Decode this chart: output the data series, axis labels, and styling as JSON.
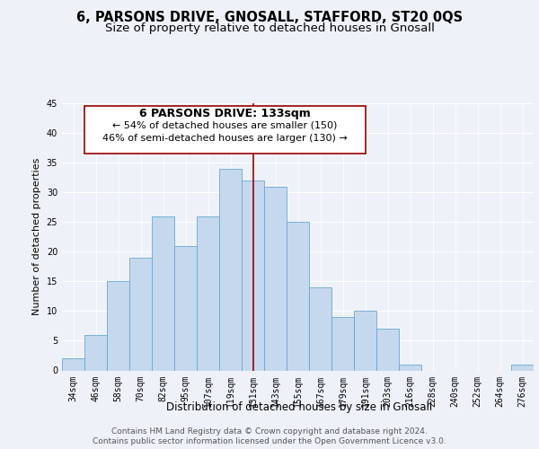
{
  "title": "6, PARSONS DRIVE, GNOSALL, STAFFORD, ST20 0QS",
  "subtitle": "Size of property relative to detached houses in Gnosall",
  "xlabel": "Distribution of detached houses by size in Gnosall",
  "ylabel": "Number of detached properties",
  "bar_labels": [
    "34sqm",
    "46sqm",
    "58sqm",
    "70sqm",
    "82sqm",
    "95sqm",
    "107sqm",
    "119sqm",
    "131sqm",
    "143sqm",
    "155sqm",
    "167sqm",
    "179sqm",
    "191sqm",
    "203sqm",
    "216sqm",
    "228sqm",
    "240sqm",
    "252sqm",
    "264sqm",
    "276sqm"
  ],
  "bar_values": [
    2,
    6,
    15,
    19,
    26,
    21,
    26,
    34,
    32,
    31,
    25,
    14,
    9,
    10,
    7,
    1,
    0,
    0,
    0,
    0,
    1
  ],
  "bar_color": "#c5d8ed",
  "bar_edge_color": "#6aa8d0",
  "ref_line_x": 8,
  "ref_line_color": "#990000",
  "ylim": [
    0,
    45
  ],
  "yticks": [
    0,
    5,
    10,
    15,
    20,
    25,
    30,
    35,
    40,
    45
  ],
  "annotation_title": "6 PARSONS DRIVE: 133sqm",
  "annotation_line1": "← 54% of detached houses are smaller (150)",
  "annotation_line2": "46% of semi-detached houses are larger (130) →",
  "annotation_box_color": "#ffffff",
  "annotation_box_edge": "#990000",
  "footer_line1": "Contains HM Land Registry data © Crown copyright and database right 2024.",
  "footer_line2": "Contains public sector information licensed under the Open Government Licence v3.0.",
  "bg_color": "#eef2f8",
  "plot_bg_color": "#eef2f8",
  "grid_color": "#ffffff",
  "title_fontsize": 10.5,
  "subtitle_fontsize": 9.5,
  "ylabel_fontsize": 8,
  "xlabel_fontsize": 8.5,
  "tick_fontsize": 7,
  "footer_fontsize": 6.5,
  "ann_title_fontsize": 9,
  "ann_text_fontsize": 8
}
